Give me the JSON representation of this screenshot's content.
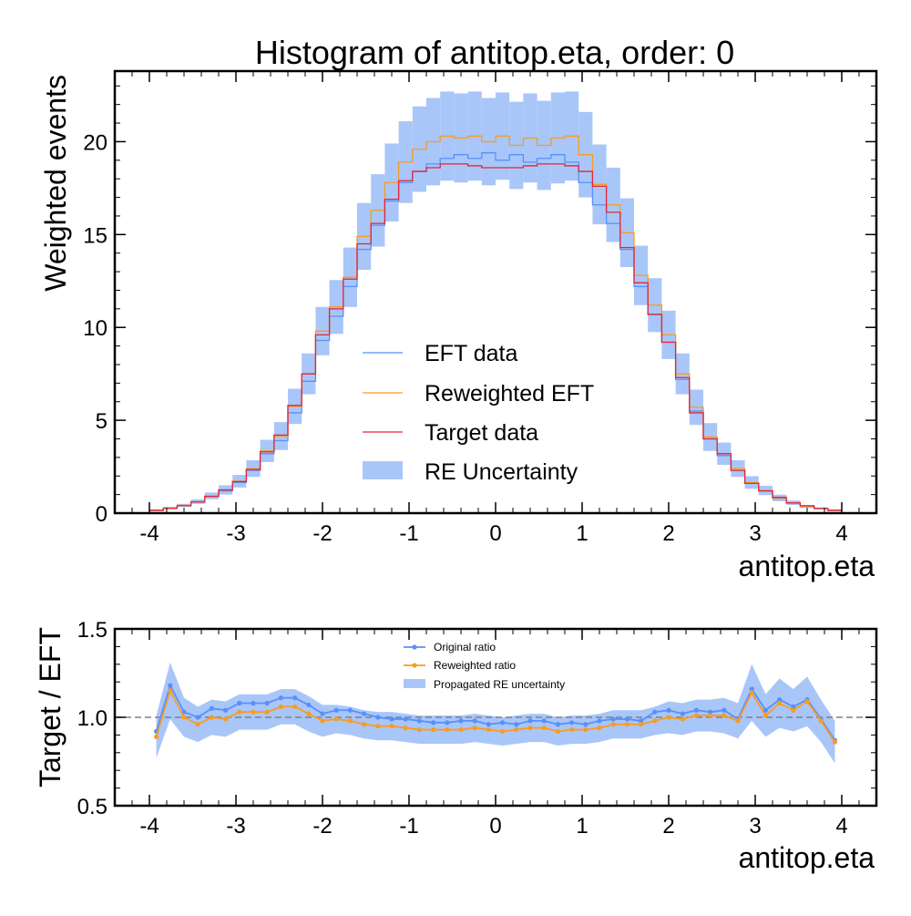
{
  "colors": {
    "eft": "#5790fc",
    "reweighted": "#f89c20",
    "target": "#e42536",
    "uncertainty": "#a9c6f9",
    "original_ratio": "#5790fc",
    "reweighted_ratio": "#f89c20",
    "reference_line": "#808080"
  },
  "chart_data": [
    {
      "type": "line",
      "title": "Histogram of antitop.eta, order: 0",
      "xlabel": "antitop.eta",
      "ylabel": "Weighted events",
      "xlim": [
        -4.4,
        4.4
      ],
      "ylim": [
        0,
        23.8
      ],
      "xticks": [
        -4,
        -3,
        -2,
        -1,
        0,
        1,
        2,
        3,
        4
      ],
      "xtick_labels": [
        "-4",
        "-3",
        "-2",
        "-1",
        "0",
        "1",
        "2",
        "3",
        "4"
      ],
      "yticks": [
        0,
        5,
        10,
        15,
        20
      ],
      "ytick_labels": [
        "0",
        "5",
        "10",
        "15",
        "20"
      ],
      "bin_edges": [
        -4.0,
        -3.84,
        -3.68,
        -3.52,
        -3.36,
        -3.2,
        -3.04,
        -2.88,
        -2.72,
        -2.56,
        -2.4,
        -2.24,
        -2.08,
        -1.92,
        -1.76,
        -1.6,
        -1.44,
        -1.28,
        -1.12,
        -0.96,
        -0.8,
        -0.64,
        -0.48,
        -0.32,
        -0.16,
        0.0,
        0.16,
        0.32,
        0.48,
        0.64,
        0.8,
        0.96,
        1.12,
        1.28,
        1.44,
        1.6,
        1.76,
        1.92,
        2.08,
        2.24,
        2.4,
        2.56,
        2.72,
        2.88,
        3.04,
        3.2,
        3.36,
        3.52,
        3.68,
        3.84,
        4.0
      ],
      "series": [
        {
          "name": "EFT data",
          "values": [
            0.15,
            0.25,
            0.4,
            0.6,
            0.9,
            1.2,
            1.65,
            2.3,
            3.2,
            3.9,
            5.4,
            7.1,
            9.3,
            10.6,
            12.2,
            14.2,
            15.5,
            16.8,
            17.8,
            18.4,
            18.8,
            19.1,
            19.3,
            19.1,
            19.4,
            19.0,
            19.3,
            18.9,
            19.1,
            19.3,
            18.9,
            17.8,
            16.6,
            15.6,
            14.2,
            12.2,
            10.7,
            9.2,
            7.2,
            5.5,
            4.0,
            3.1,
            2.3,
            1.6,
            1.2,
            0.8,
            0.55,
            0.35,
            0.25,
            0.15
          ]
        },
        {
          "name": "Reweighted EFT",
          "values": [
            0.15,
            0.28,
            0.42,
            0.62,
            0.93,
            1.25,
            1.72,
            2.4,
            3.35,
            4.15,
            5.75,
            7.5,
            9.8,
            11.1,
            12.7,
            14.9,
            16.3,
            17.8,
            18.9,
            19.6,
            20.0,
            20.3,
            20.2,
            20.3,
            20.0,
            20.3,
            19.8,
            20.2,
            19.8,
            20.2,
            20.3,
            19.3,
            17.7,
            16.6,
            15.1,
            12.8,
            11.2,
            9.6,
            7.5,
            5.7,
            4.1,
            3.2,
            2.4,
            1.65,
            1.22,
            0.82,
            0.56,
            0.36,
            0.25,
            0.15
          ]
        },
        {
          "name": "Target data",
          "values": [
            0.15,
            0.25,
            0.4,
            0.6,
            0.9,
            1.25,
            1.7,
            2.35,
            3.3,
            4.2,
            5.8,
            7.5,
            9.6,
            11.0,
            12.6,
            14.5,
            15.6,
            16.9,
            17.9,
            18.4,
            18.6,
            18.8,
            18.8,
            18.7,
            18.6,
            18.6,
            18.6,
            18.7,
            18.8,
            18.8,
            18.7,
            18.4,
            17.6,
            16.2,
            14.3,
            12.4,
            10.7,
            9.2,
            7.3,
            5.4,
            4.0,
            3.2,
            2.3,
            1.6,
            1.2,
            0.85,
            0.55,
            0.4,
            0.25,
            0.15
          ]
        },
        {
          "name": "RE Uncertainty",
          "values": [
            0.05,
            0.06,
            0.08,
            0.12,
            0.18,
            0.25,
            0.34,
            0.45,
            0.6,
            0.75,
            0.95,
            1.1,
            1.3,
            1.45,
            1.6,
            1.8,
            1.95,
            2.1,
            2.2,
            2.3,
            2.35,
            2.4,
            2.4,
            2.4,
            2.35,
            2.35,
            2.35,
            2.4,
            2.4,
            2.45,
            2.4,
            2.3,
            2.15,
            2.0,
            1.85,
            1.6,
            1.45,
            1.3,
            1.1,
            0.95,
            0.75,
            0.6,
            0.45,
            0.34,
            0.25,
            0.18,
            0.12,
            0.08,
            0.06,
            0.05
          ]
        }
      ],
      "legend_placement": "center-bottom"
    },
    {
      "type": "line",
      "xlabel": "antitop.eta",
      "ylabel": "Target / EFT",
      "xlim": [
        -4.4,
        4.4
      ],
      "ylim": [
        0.5,
        1.5
      ],
      "xticks": [
        -4,
        -3,
        -2,
        -1,
        0,
        1,
        2,
        3,
        4
      ],
      "xtick_labels": [
        "-4",
        "-3",
        "-2",
        "-1",
        "0",
        "1",
        "2",
        "3",
        "4"
      ],
      "yticks": [
        0.5,
        1.0,
        1.5
      ],
      "ytick_labels": [
        "0.5",
        "1.0",
        "1.5"
      ],
      "reference_y": 1.0,
      "x": [
        -3.92,
        -3.76,
        -3.6,
        -3.44,
        -3.28,
        -3.12,
        -2.96,
        -2.8,
        -2.64,
        -2.48,
        -2.32,
        -2.16,
        -2.0,
        -1.84,
        -1.68,
        -1.52,
        -1.36,
        -1.2,
        -1.04,
        -0.88,
        -0.72,
        -0.56,
        -0.4,
        -0.24,
        -0.08,
        0.08,
        0.24,
        0.4,
        0.56,
        0.72,
        0.88,
        1.04,
        1.2,
        1.36,
        1.52,
        1.68,
        1.84,
        2.0,
        2.16,
        2.32,
        2.48,
        2.64,
        2.8,
        2.96,
        3.12,
        3.28,
        3.44,
        3.6,
        3.76,
        3.92
      ],
      "series": [
        {
          "name": "Original ratio",
          "values": [
            0.92,
            1.18,
            1.03,
            1.0,
            1.05,
            1.04,
            1.08,
            1.08,
            1.08,
            1.11,
            1.11,
            1.07,
            1.02,
            1.04,
            1.04,
            1.02,
            1.0,
            0.99,
            0.99,
            0.98,
            0.97,
            0.97,
            0.98,
            0.98,
            0.96,
            0.97,
            0.96,
            0.98,
            0.98,
            0.96,
            0.97,
            0.96,
            0.98,
            0.99,
            0.99,
            0.98,
            1.03,
            1.04,
            1.02,
            1.04,
            1.03,
            1.04,
            0.99,
            1.16,
            1.04,
            1.1,
            1.06,
            1.1,
            0.99,
            0.87
          ]
        },
        {
          "name": "Reweighted ratio",
          "values": [
            0.89,
            1.15,
            1.0,
            0.96,
            1.0,
            0.99,
            1.03,
            1.03,
            1.03,
            1.06,
            1.06,
            1.02,
            0.98,
            0.99,
            0.98,
            0.96,
            0.95,
            0.95,
            0.94,
            0.93,
            0.93,
            0.93,
            0.93,
            0.94,
            0.93,
            0.92,
            0.93,
            0.94,
            0.94,
            0.92,
            0.93,
            0.93,
            0.94,
            0.96,
            0.96,
            0.96,
            0.98,
            1.0,
            0.99,
            1.01,
            1.01,
            1.01,
            0.98,
            1.14,
            1.01,
            1.08,
            1.04,
            1.09,
            0.98,
            0.86
          ]
        },
        {
          "name": "Propagated RE uncertainty",
          "values": [
            0.12,
            0.16,
            0.11,
            0.1,
            0.1,
            0.1,
            0.1,
            0.1,
            0.1,
            0.1,
            0.1,
            0.1,
            0.09,
            0.08,
            0.08,
            0.08,
            0.08,
            0.08,
            0.08,
            0.08,
            0.08,
            0.08,
            0.08,
            0.08,
            0.08,
            0.08,
            0.08,
            0.08,
            0.08,
            0.08,
            0.08,
            0.08,
            0.08,
            0.08,
            0.08,
            0.08,
            0.08,
            0.09,
            0.09,
            0.09,
            0.09,
            0.1,
            0.1,
            0.16,
            0.12,
            0.14,
            0.12,
            0.14,
            0.12,
            0.12
          ]
        }
      ],
      "legend_placement": "top-center"
    }
  ]
}
